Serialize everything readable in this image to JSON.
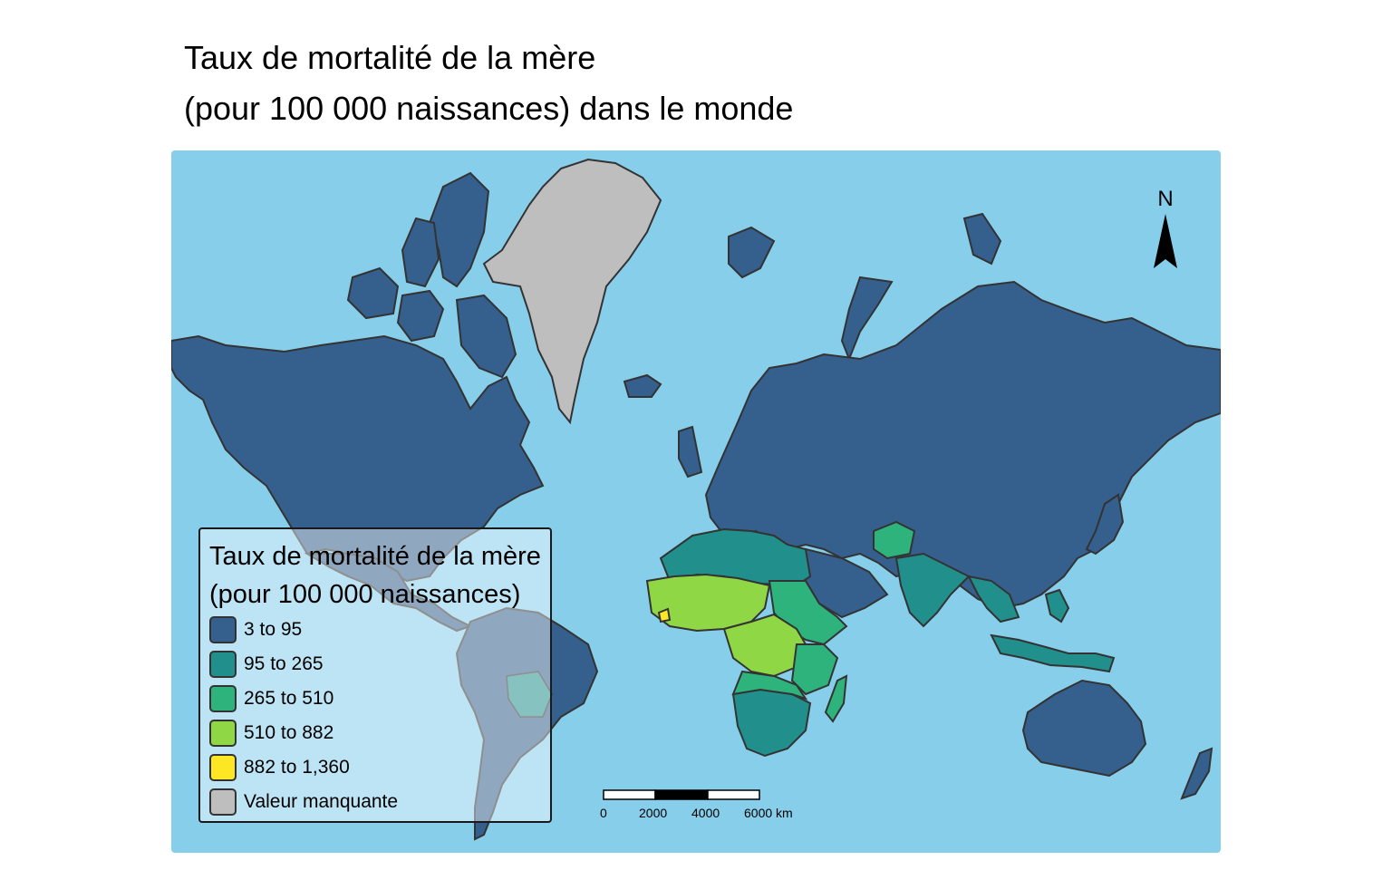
{
  "title": {
    "line1": "Taux de mortalité de la mère",
    "line2": "(pour 100 000 naissances) dans le monde"
  },
  "legend": {
    "title_line1": "Taux de mortalité de la mère",
    "title_line2": "(pour 100 000 naissances)",
    "items": [
      {
        "label": "3 to 95",
        "color": "#355f8d"
      },
      {
        "label": "95 to 265",
        "color": "#21908d"
      },
      {
        "label": "265 to 510",
        "color": "#2eb37c"
      },
      {
        "label": "510 to 882",
        "color": "#8fd744"
      },
      {
        "label": "882 to 1,360",
        "color": "#fde725"
      },
      {
        "label": "Valeur manquante",
        "color": "#bebebe"
      }
    ]
  },
  "compass": {
    "label": "N"
  },
  "scale_bar": {
    "labels": [
      "0",
      "2000",
      "4000",
      "6000 km"
    ]
  },
  "colors": {
    "ocean": "#87ceeb",
    "border": "#333333"
  }
}
